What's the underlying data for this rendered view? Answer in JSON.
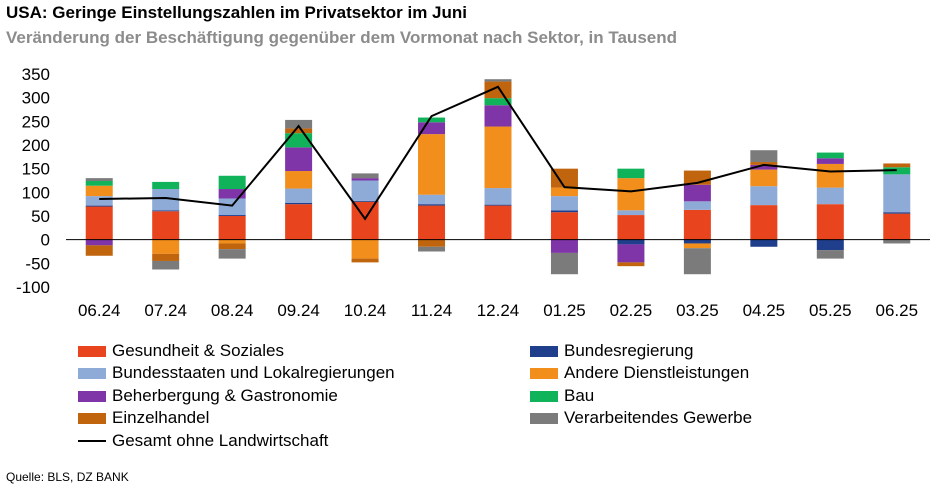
{
  "title": "USA: Geringe Einstellungszahlen im Privatsektor im Juni",
  "subtitle": "Veränderung der Beschäftigung gegenüber dem Vormonat nach Sektor, in Tausend",
  "source": "Quelle: BLS, DZ BANK",
  "chart_data": {
    "type": "bar",
    "stacked": true,
    "categories": [
      "06.24",
      "07.24",
      "08.24",
      "09.24",
      "10.24",
      "11.24",
      "12.24",
      "01.25",
      "02.25",
      "03.25",
      "04.25",
      "05.25",
      "06.25"
    ],
    "ylim": [
      -100,
      350
    ],
    "yticks": [
      -100,
      -50,
      0,
      50,
      100,
      150,
      200,
      250,
      300,
      350
    ],
    "series": [
      {
        "name": "Gesundheit & Soziales",
        "color": "#e8451e",
        "values": [
          70,
          60,
          50,
          75,
          80,
          72,
          72,
          58,
          52,
          63,
          73,
          75,
          55
        ]
      },
      {
        "name": "Bundesregierung",
        "color": "#1f3e8c",
        "values": [
          2,
          2,
          2,
          3,
          2,
          3,
          2,
          4,
          -10,
          -8,
          -15,
          -22,
          3
        ]
      },
      {
        "name": "Bundesstaaten und Lokalregierungen",
        "color": "#8eabd8",
        "values": [
          20,
          45,
          35,
          30,
          43,
          20,
          35,
          30,
          10,
          18,
          40,
          35,
          80
        ]
      },
      {
        "name": "Andere Dienstleistungen",
        "color": "#f28e1c",
        "values": [
          22,
          -30,
          -8,
          37,
          -40,
          128,
          130,
          18,
          68,
          -10,
          35,
          50,
          0
        ]
      },
      {
        "name": "Beherbergung & Gastronomie",
        "color": "#7f35a8",
        "values": [
          -12,
          0,
          20,
          50,
          5,
          25,
          45,
          -28,
          -38,
          35,
          10,
          12,
          0
        ]
      },
      {
        "name": "Bau",
        "color": "#10b35a",
        "values": [
          10,
          15,
          28,
          30,
          0,
          10,
          15,
          0,
          20,
          0,
          0,
          12,
          15
        ]
      },
      {
        "name": "Einzelhandel",
        "color": "#c0650e",
        "values": [
          -22,
          -15,
          -12,
          10,
          -8,
          -15,
          35,
          40,
          -8,
          30,
          6,
          0,
          8
        ]
      },
      {
        "name": "Verarbeitendes Gewerbe",
        "color": "#7b7b7b",
        "values": [
          6,
          -18,
          -20,
          18,
          10,
          -10,
          5,
          -45,
          0,
          -55,
          25,
          -18,
          -8
        ]
      }
    ],
    "line_series": {
      "name": "Gesamt ohne Landwirtschaft",
      "color": "#000000",
      "values": [
        86,
        88,
        72,
        240,
        44,
        261,
        323,
        111,
        102,
        120,
        158,
        144,
        147
      ]
    }
  }
}
